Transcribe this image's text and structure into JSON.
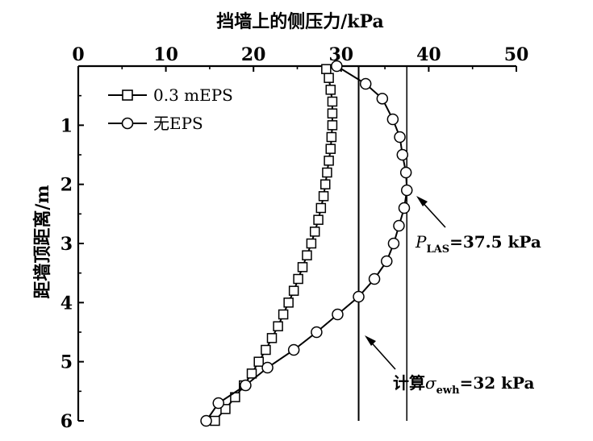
{
  "chart_data": {
    "type": "line",
    "xlabel": "挡墙上的侧压力/kPa",
    "ylabel": "距墙顶距离/m",
    "x_axis_position": "top",
    "y_axis_direction": "downward",
    "xlim": [
      0,
      50
    ],
    "ylim": [
      0,
      6
    ],
    "x_ticks": [
      "0",
      "10",
      "20",
      "30",
      "40",
      "50"
    ],
    "y_ticks": [
      "1",
      "2",
      "3",
      "4",
      "5",
      "6"
    ],
    "legend_position": "top-left",
    "series": [
      {
        "name": "0.3 mEPS",
        "marker": "square",
        "points": [
          [
            28.3,
            0.05
          ],
          [
            28.6,
            0.2
          ],
          [
            28.8,
            0.4
          ],
          [
            29.0,
            0.6
          ],
          [
            29.0,
            0.8
          ],
          [
            29.0,
            1.0
          ],
          [
            28.9,
            1.2
          ],
          [
            28.8,
            1.4
          ],
          [
            28.6,
            1.6
          ],
          [
            28.4,
            1.8
          ],
          [
            28.2,
            2.0
          ],
          [
            28.0,
            2.2
          ],
          [
            27.7,
            2.4
          ],
          [
            27.4,
            2.6
          ],
          [
            27.0,
            2.8
          ],
          [
            26.6,
            3.0
          ],
          [
            26.1,
            3.2
          ],
          [
            25.6,
            3.4
          ],
          [
            25.1,
            3.6
          ],
          [
            24.6,
            3.8
          ],
          [
            24.0,
            4.0
          ],
          [
            23.4,
            4.2
          ],
          [
            22.8,
            4.4
          ],
          [
            22.1,
            4.6
          ],
          [
            21.4,
            4.8
          ],
          [
            20.6,
            5.0
          ],
          [
            19.8,
            5.2
          ],
          [
            18.9,
            5.4
          ],
          [
            17.9,
            5.6
          ],
          [
            16.8,
            5.8
          ],
          [
            15.6,
            6.0
          ]
        ]
      },
      {
        "name": "无EPS",
        "marker": "circle",
        "points": [
          [
            29.5,
            0.0
          ],
          [
            32.8,
            0.3
          ],
          [
            34.7,
            0.55
          ],
          [
            35.9,
            0.9
          ],
          [
            36.7,
            1.2
          ],
          [
            37.0,
            1.5
          ],
          [
            37.4,
            1.8
          ],
          [
            37.5,
            2.1
          ],
          [
            37.2,
            2.4
          ],
          [
            36.6,
            2.7
          ],
          [
            36.0,
            3.0
          ],
          [
            35.2,
            3.3
          ],
          [
            33.8,
            3.6
          ],
          [
            32.0,
            3.9
          ],
          [
            29.6,
            4.2
          ],
          [
            27.2,
            4.5
          ],
          [
            24.6,
            4.8
          ],
          [
            21.6,
            5.1
          ],
          [
            19.1,
            5.4
          ],
          [
            16.0,
            5.7
          ],
          [
            14.6,
            6.0
          ]
        ]
      }
    ],
    "reference_lines": [
      {
        "x": 37.5,
        "label": "P_LAS=37.5 kPa"
      },
      {
        "x": 32,
        "label": "计算σ_ewh=32 kPa"
      }
    ]
  },
  "annotations": {
    "p_las": {
      "sym": "P",
      "sub": "LAS",
      "rest": "=37.5 kPa"
    },
    "sigma": {
      "pre": "计算",
      "sym": "σ",
      "sub": "ewh",
      "rest": "=32 kPa"
    }
  }
}
